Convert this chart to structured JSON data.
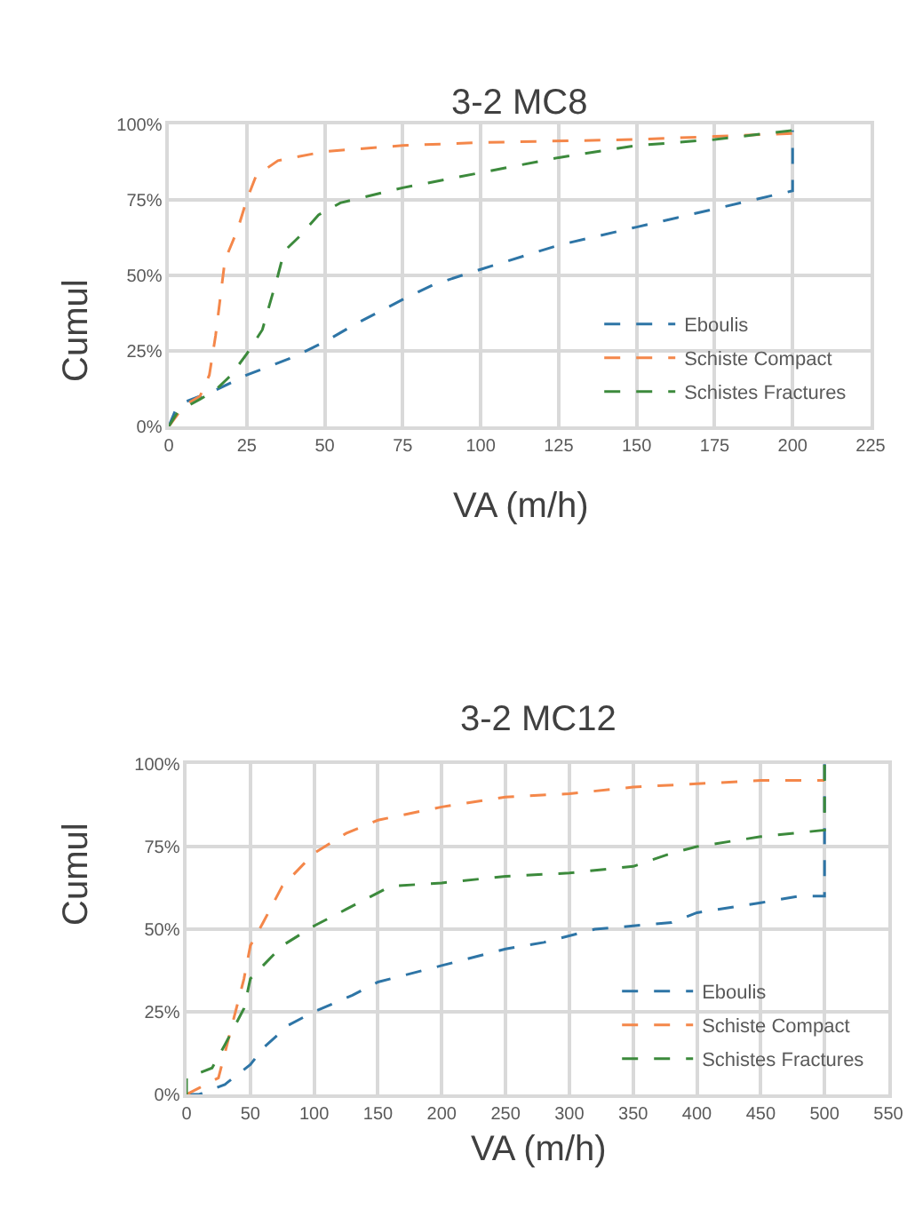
{
  "chart_data": [
    {
      "type": "line",
      "title": "3-2 MC8",
      "xlabel": "VA (m/h)",
      "ylabel": "Cumul",
      "line_style": "dashed",
      "marker": "none",
      "grid": true,
      "legend": "bottom right",
      "xlim": [
        0,
        225
      ],
      "xticks": [
        0,
        25,
        50,
        75,
        100,
        125,
        150,
        175,
        200,
        225
      ],
      "ylim": [
        0,
        100
      ],
      "yticks": [
        {
          "value": 0,
          "label": "0%"
        },
        {
          "value": 25,
          "label": "25%"
        },
        {
          "value": 50,
          "label": "50%"
        },
        {
          "value": 75,
          "label": "75%"
        },
        {
          "value": 100,
          "label": "100%"
        }
      ],
      "series": [
        {
          "name": "Eboulis",
          "color": "#2e75a6",
          "x": [
            0,
            2,
            5,
            10,
            15,
            25,
            40,
            50,
            60,
            75,
            85,
            100,
            125,
            150,
            175,
            200,
            200
          ],
          "values": [
            0,
            5,
            8,
            10,
            12,
            17,
            23,
            28,
            34,
            42,
            47,
            52,
            60,
            66,
            72,
            78,
            98
          ]
        },
        {
          "name": "Schiste Compact",
          "color": "#f4874a",
          "x": [
            0,
            5,
            10,
            13,
            15,
            18,
            20,
            22,
            25,
            28,
            35,
            50,
            75,
            100,
            150,
            175,
            200,
            200
          ],
          "values": [
            0,
            7,
            10,
            17,
            30,
            55,
            60,
            65,
            75,
            83,
            88,
            91,
            93,
            94,
            95,
            96,
            97,
            98
          ]
        },
        {
          "name": "Schistes Fractures",
          "color": "#3c8a3c",
          "x": [
            0,
            3,
            10,
            15,
            20,
            25,
            30,
            35,
            37,
            42,
            48,
            55,
            75,
            90,
            110,
            125,
            150,
            175,
            200
          ],
          "values": [
            0,
            5,
            9,
            12,
            17,
            24,
            32,
            50,
            58,
            63,
            70,
            74,
            79,
            82,
            86,
            89,
            93,
            95,
            98
          ]
        }
      ]
    },
    {
      "type": "line",
      "title": "3-2 MC12",
      "xlabel": "VA (m/h)",
      "ylabel": "Cumul",
      "line_style": "dashed",
      "marker": "none",
      "grid": true,
      "legend": "bottom right",
      "xlim": [
        0,
        550
      ],
      "xticks": [
        0,
        50,
        100,
        150,
        200,
        250,
        300,
        350,
        400,
        450,
        500,
        550
      ],
      "ylim": [
        0,
        100
      ],
      "yticks": [
        {
          "value": 0,
          "label": "0%"
        },
        {
          "value": 25,
          "label": "25%"
        },
        {
          "value": 50,
          "label": "50%"
        },
        {
          "value": 75,
          "label": "75%"
        },
        {
          "value": 100,
          "label": "100%"
        }
      ],
      "series": [
        {
          "name": "Eboulis",
          "color": "#2e75a6",
          "x": [
            0,
            10,
            30,
            50,
            60,
            80,
            100,
            130,
            150,
            200,
            250,
            280,
            320,
            350,
            380,
            400,
            450,
            480,
            500,
            500
          ],
          "values": [
            0,
            0,
            3,
            9,
            14,
            21,
            25,
            30,
            34,
            39,
            44,
            46,
            50,
            51,
            52,
            55,
            58,
            60,
            60,
            100
          ]
        },
        {
          "name": "Schiste Compact",
          "color": "#f4874a",
          "x": [
            0,
            10,
            25,
            35,
            45,
            50,
            60,
            75,
            100,
            125,
            150,
            200,
            250,
            300,
            350,
            400,
            450,
            500
          ],
          "values": [
            0,
            2,
            5,
            20,
            35,
            45,
            52,
            63,
            73,
            79,
            83,
            87,
            90,
            91,
            93,
            94,
            95,
            95
          ]
        },
        {
          "name": "Schistes Fractures",
          "color": "#3c8a3c",
          "x": [
            0,
            0,
            20,
            30,
            45,
            50,
            75,
            100,
            125,
            160,
            200,
            250,
            300,
            350,
            380,
            400,
            450,
            500,
            500
          ],
          "values": [
            0,
            5,
            8,
            15,
            26,
            35,
            45,
            51,
            56,
            63,
            64,
            66,
            67,
            69,
            73,
            75,
            78,
            80,
            100
          ]
        }
      ]
    }
  ]
}
